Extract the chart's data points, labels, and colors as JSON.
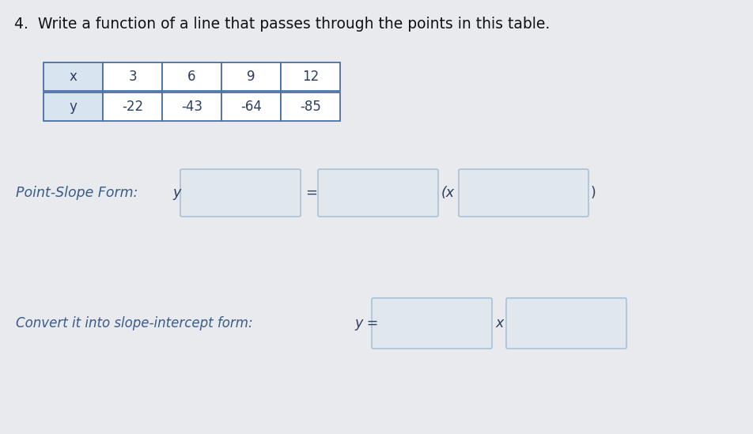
{
  "title": "4.  Write a function of a line that passes through the points in this table.",
  "title_fontsize": 13.5,
  "bg_color": "#e8eaed",
  "table_x_labels": [
    "x",
    "3",
    "6",
    "9",
    "12"
  ],
  "table_y_labels": [
    "y",
    "-22",
    "-43",
    "-64",
    "-85"
  ],
  "table_border_color": "#4a6fa5",
  "table_bg_color": "#ffffff",
  "table_header_bg": "#d8e4f0",
  "point_slope_label": "Point-Slope Form:",
  "point_slope_y": "y",
  "point_slope_x": "(x",
  "point_slope_paren_close": ")",
  "point_slope_eq": "=",
  "convert_label": "Convert it into slope-intercept form:",
  "convert_y": "y",
  "convert_dash": "=",
  "convert_x": "x",
  "box_fill": "#dce8f0",
  "box_border": "#8aaccc",
  "text_color": "#2c3e60",
  "label_color": "#3a5a8a",
  "font_family": "DejaVu Sans"
}
